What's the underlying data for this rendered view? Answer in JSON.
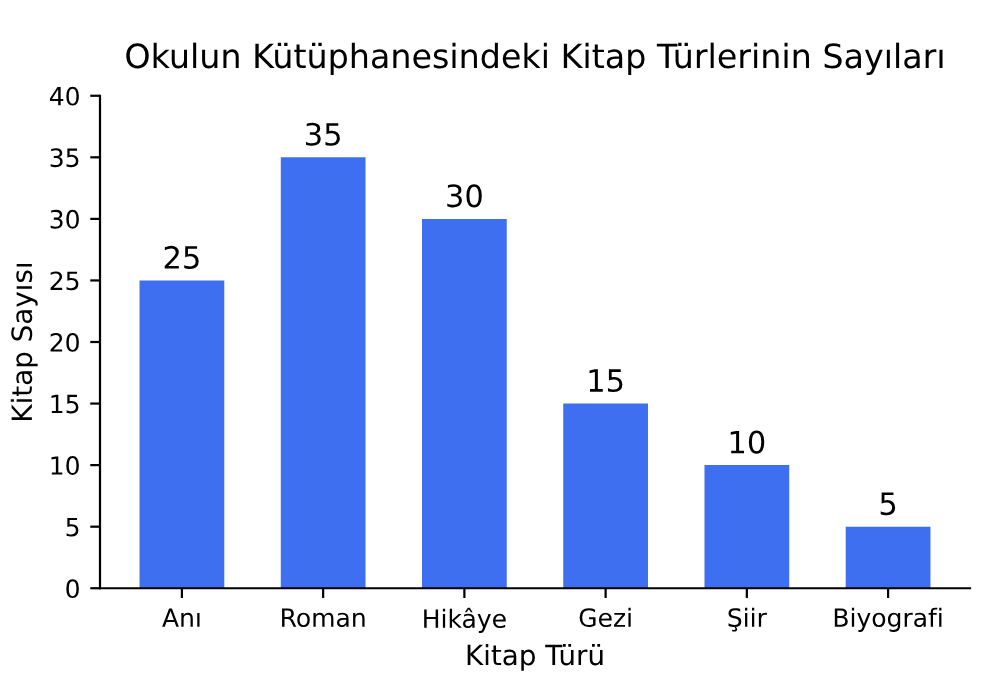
{
  "chart_data": {
    "type": "bar",
    "title": "Okulun Kütüphanesindeki Kitap Türlerinin Sayıları",
    "xlabel": "Kitap Türü",
    "ylabel": "Kitap Sayısı",
    "categories": [
      "Anı",
      "Roman",
      "Hikâye",
      "Gezi",
      "Şiir",
      "Biyografi"
    ],
    "values": [
      25,
      35,
      30,
      15,
      10,
      5
    ],
    "color": "#3d6ff0",
    "ylim": [
      0,
      40
    ],
    "yticks": [
      0,
      5,
      10,
      15,
      20,
      25,
      30,
      35,
      40
    ],
    "grid": false,
    "data_labels": true
  }
}
